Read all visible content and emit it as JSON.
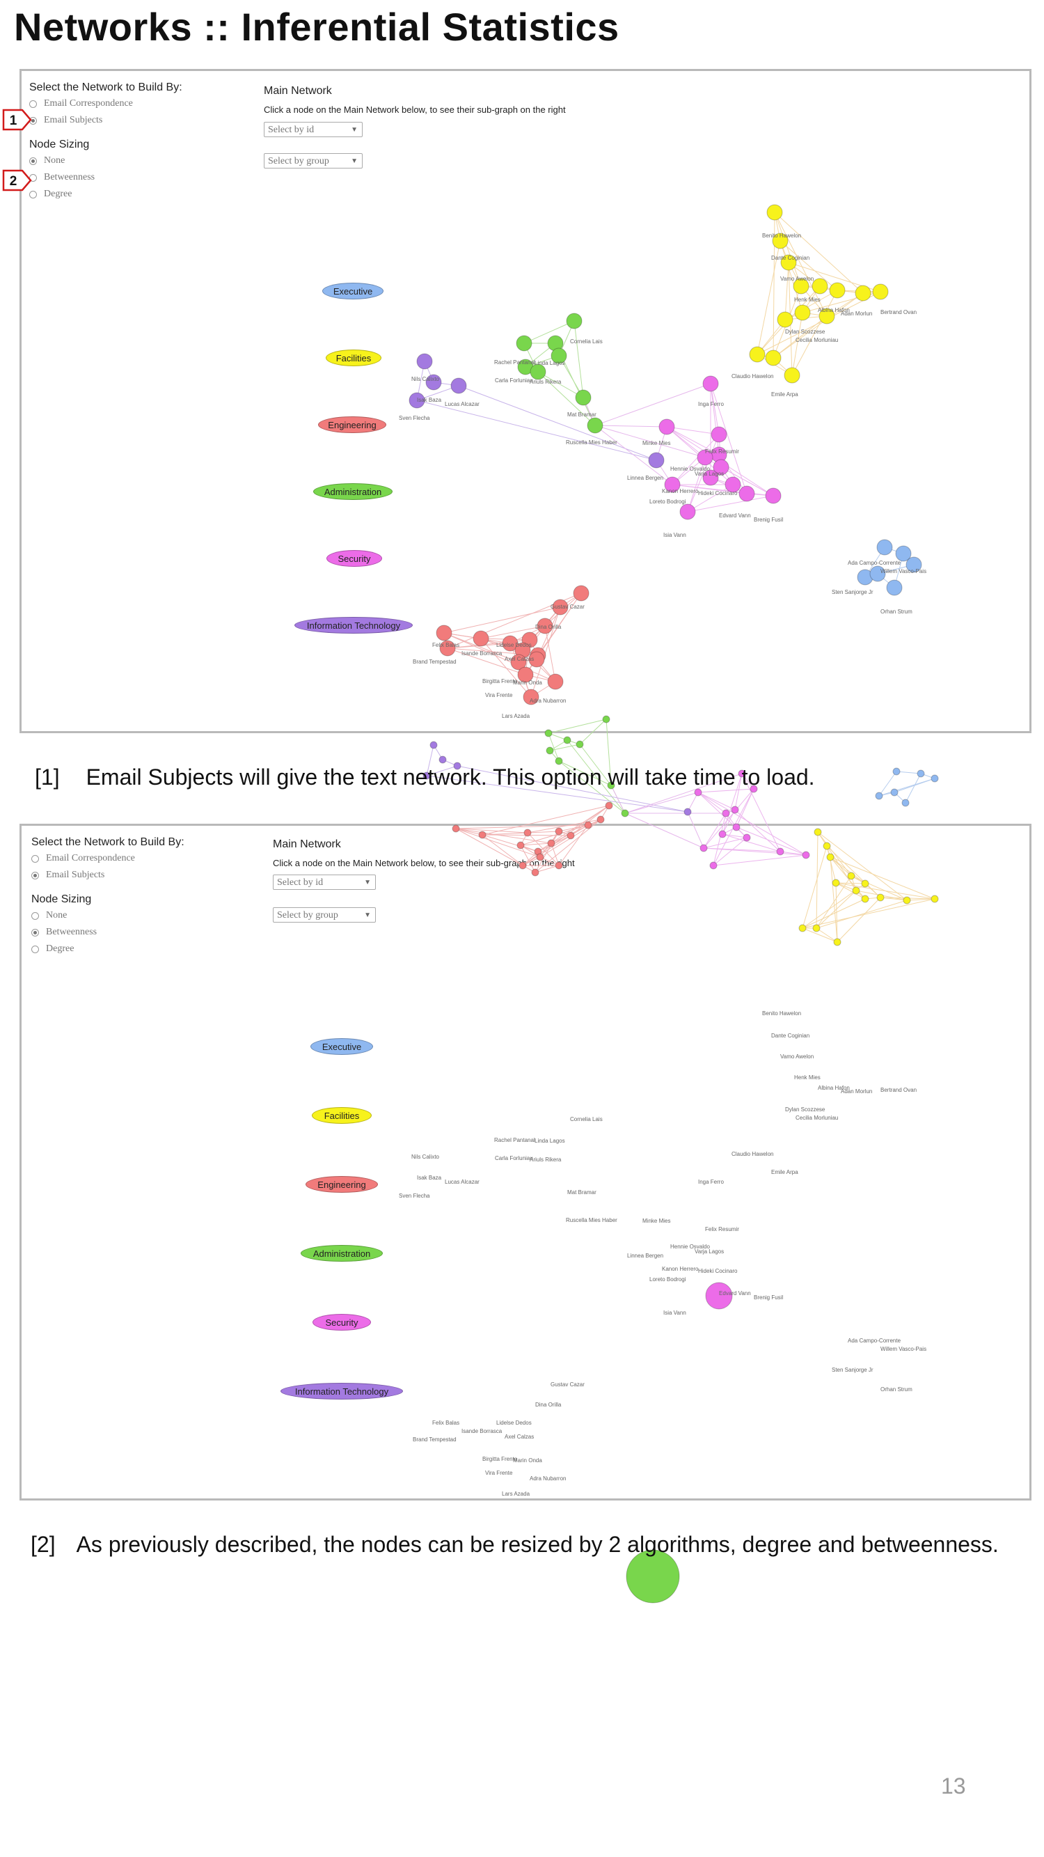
{
  "page": {
    "title": "Networks :: Inferential Statistics",
    "page_number": "13"
  },
  "ui": {
    "build_heading": "Select the Network to Build By:",
    "build_options": [
      "Email Correspondence",
      "Email Subjects"
    ],
    "sizing_heading": "Node Sizing",
    "sizing_options": [
      "None",
      "Betweenness",
      "Degree"
    ],
    "main_heading": "Main Network",
    "main_subtitle": "Click a node on the Main Network below, to see their sub-graph on the right",
    "select_id": "Select by id",
    "select_group": "Select by group",
    "groups": [
      {
        "label": "Executive",
        "color": "#8fb8f0"
      },
      {
        "label": "Facilities",
        "color": "#f7f21c"
      },
      {
        "label": "Engineering",
        "color": "#f17b7b"
      },
      {
        "label": "Administration",
        "color": "#79d64c"
      },
      {
        "label": "Security",
        "color": "#ec6ce8"
      },
      {
        "label": "Information Technology",
        "color": "#a37ae0"
      }
    ]
  },
  "screenshots": [
    {
      "build_selected": 1,
      "sizing_selected": 0
    },
    {
      "build_selected": 1,
      "sizing_selected": 1
    }
  ],
  "callouts": [
    "1",
    "2"
  ],
  "captions": [
    {
      "num": "[1]",
      "text": "Email Subjects will give the text network. This option will take time to load."
    },
    {
      "num": "[2]",
      "text": "As previously described, the nodes can be resized by 2 algorithms, degree and betweenness."
    }
  ],
  "network": {
    "executive": {
      "color": "#8fb8f0",
      "names": [
        "Ada Campo-Corrente",
        "Willem Vasco-Pais",
        "Sten Sanjorge Jr",
        "Orhan Strum"
      ]
    },
    "facilities": {
      "color": "#f7f21c",
      "names": [
        "Bertrand Ovan",
        "Adan Morlun",
        "Dante Coginian",
        "Vamo Awelon",
        "Henk Mies",
        "Albina Hafon",
        "Dylan Scozzese",
        "Cecilia Morluniau",
        "Claudio Hawelon",
        "Emile Arpa",
        "Benito Hawelon"
      ]
    },
    "engineering": {
      "color": "#f17b7b",
      "names": [
        "Felix Balas",
        "Brand Tempestad",
        "Isande Borrasca",
        "Lidelse Dedos",
        "Dina Orilla",
        "Gustav Cazar",
        "Birgitta Frente",
        "Vira Frente",
        "Marin Onda",
        "Axel Calzas",
        "Adra Nubarron",
        "Lars Azada"
      ]
    },
    "administration": {
      "color": "#79d64c",
      "names": [
        "Cornelia Lais",
        "Rachel Pantanal",
        "Linda Lagos",
        "Carla Forluniau",
        "Ariuls Rikera",
        "Mat Bramar",
        "Ruscella Mies Haber"
      ]
    },
    "security": {
      "color": "#ec6ce8",
      "names": [
        "Inga Ferro",
        "Felix Resumir",
        "Minke Mies",
        "Hennie Osvaldo",
        "Kanon Herrero",
        "Isia Vann",
        "Loreto Bodrogi",
        "Varja Lagos",
        "Hideki Cocinaro",
        "Edvard Vann",
        "Brenig Fusil"
      ]
    },
    "it": {
      "color": "#a37ae0",
      "names": [
        "Nils Calixto",
        "Isak Baza",
        "Lucas Alcazar",
        "Sven Flecha",
        "Linnea Bergen"
      ]
    }
  }
}
